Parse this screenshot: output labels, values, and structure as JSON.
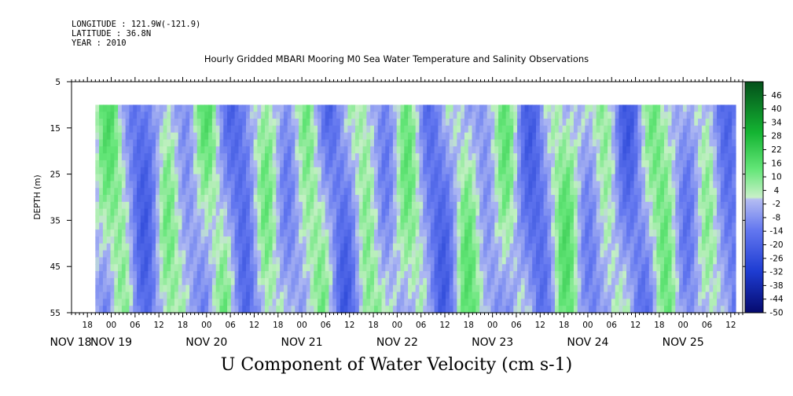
{
  "header": {
    "longitude": "LONGITUDE : 121.9W(-121.9)",
    "latitude": "LATITUDE : 36.8N",
    "year": "YEAR : 2010"
  },
  "chart_data": {
    "type": "heatmap",
    "title": "Hourly Gridded MBARI Mooring M0 Sea Water Temperature and Salinity Observations",
    "variable_label": "U Component of Water Velocity (cm s-1)",
    "ylabel": "DEPTH (m)",
    "y_ticks": [
      "5",
      "15",
      "25",
      "35",
      "45",
      "55"
    ],
    "ylim": [
      5,
      55
    ],
    "y_data_range": [
      10,
      55
    ],
    "x_hour_ticks": [
      "18",
      "00",
      "06",
      "12",
      "18",
      "00",
      "06",
      "12",
      "18",
      "00",
      "06",
      "12",
      "18",
      "00",
      "06",
      "12",
      "18",
      "00",
      "06",
      "12",
      "18",
      "00",
      "06",
      "12",
      "18",
      "00",
      "06",
      "12",
      "18",
      "00",
      "06",
      "12"
    ],
    "x_date_labels": [
      "NOV 18",
      "NOV 19",
      "NOV 20",
      "NOV 21",
      "NOV 22",
      "NOV 23",
      "NOV 24",
      "NOV 25"
    ],
    "xlim": [
      "2010-11-18T14:00",
      "2010-11-25T15:00"
    ],
    "x_data_start": "2010-11-18T20:00",
    "colorbar_labels": [
      "46",
      "40",
      "34",
      "28",
      "22",
      "16",
      "10",
      "4",
      "-2",
      "-8",
      "-14",
      "-20",
      "-26",
      "-32",
      "-38",
      "-44",
      "-50"
    ],
    "colorbar_range": [
      -50,
      52
    ],
    "colors": {
      "negative_strong": "#050a6e",
      "negative": "#2f52e6",
      "neutral_neg": "#aab4f0",
      "neutral_pos": "#b4f0b4",
      "positive": "#1ed23c",
      "positive_strong": "#03501a"
    },
    "grid": false
  }
}
